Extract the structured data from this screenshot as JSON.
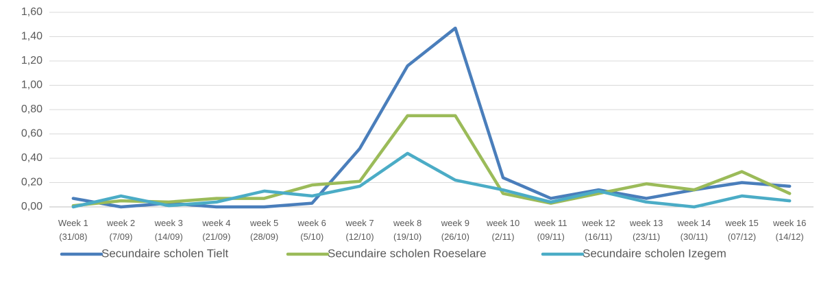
{
  "chart_data": {
    "type": "line",
    "categories": [
      "Week 1 (31/08)",
      "week 2 (7/09)",
      "week 3 (14/09)",
      "week 4 (21/09)",
      "week 5 (28/09)",
      "week 6 (5/10)",
      "week 7 (12/10)",
      "week 8 (19/10)",
      "week 9 (26/10)",
      "week 10 (2/11)",
      "week 11 (09/11)",
      "week 12 (16/11)",
      "week 13 (23/11)",
      "week 14 (30/11)",
      "week 15 (07/12)",
      "week 16 (14/12)"
    ],
    "series": [
      {
        "name": "Secundaire scholen Tielt",
        "color": "#4a7ebb",
        "values": [
          0.07,
          0.0,
          0.03,
          0.0,
          0.0,
          0.03,
          0.48,
          1.16,
          1.47,
          0.24,
          0.07,
          0.14,
          0.07,
          0.14,
          0.2,
          0.17
        ]
      },
      {
        "name": "Secundaire scholen Roeselare",
        "color": "#9bbb59",
        "values": [
          0.01,
          0.05,
          0.04,
          0.07,
          0.07,
          0.18,
          0.21,
          0.75,
          0.75,
          0.11,
          0.03,
          0.11,
          0.19,
          0.14,
          0.29,
          0.11
        ]
      },
      {
        "name": "Secundaire scholen Izegem",
        "color": "#4bacc6",
        "values": [
          0.0,
          0.09,
          0.01,
          0.04,
          0.13,
          0.09,
          0.17,
          0.44,
          0.22,
          0.14,
          0.04,
          0.13,
          0.04,
          0.0,
          0.09,
          0.05
        ]
      }
    ],
    "ylim": [
      0,
      1.6
    ],
    "yticks": [
      {
        "value": 0,
        "label": "0,00"
      },
      {
        "value": 0.2,
        "label": "0,20"
      },
      {
        "value": 0.4,
        "label": "0,40"
      },
      {
        "value": 0.6,
        "label": "0,60"
      },
      {
        "value": 0.8,
        "label": "0,80"
      },
      {
        "value": 1.0,
        "label": "1,00"
      },
      {
        "value": 1.2,
        "label": "1,20"
      },
      {
        "value": 1.4,
        "label": "1,40"
      },
      {
        "value": 1.6,
        "label": "1,60"
      }
    ],
    "grid": true,
    "legend": "bottom"
  }
}
